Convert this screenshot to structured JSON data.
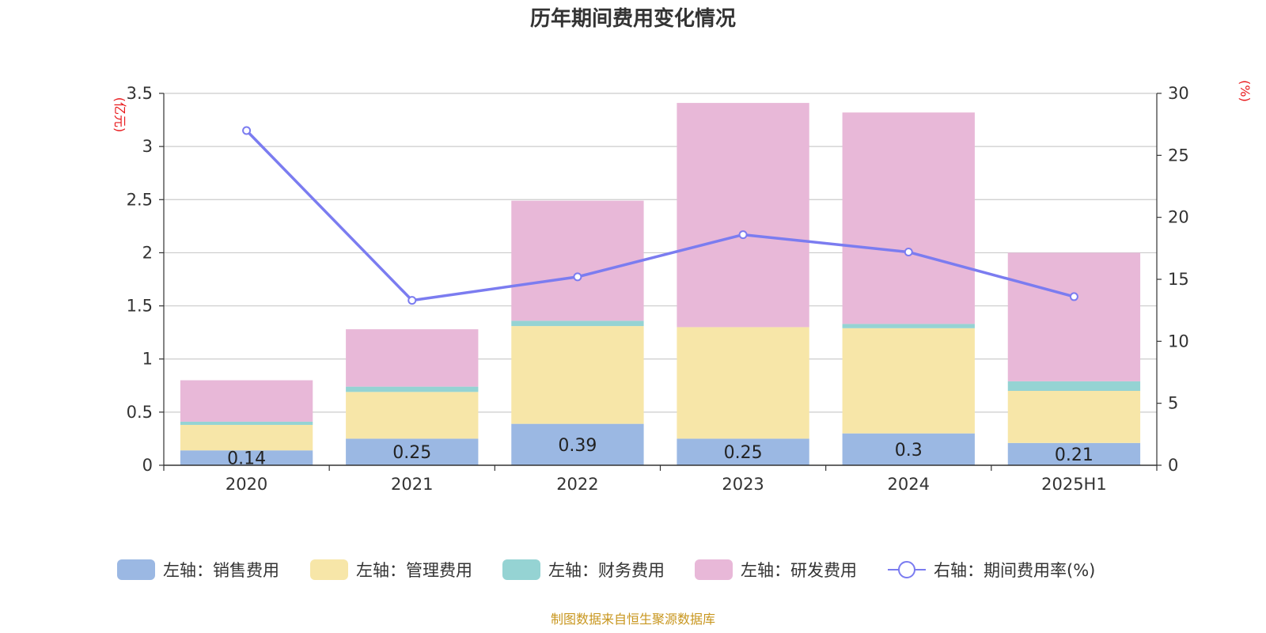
{
  "chart_data": {
    "type": "bar",
    "title": "历年期间费用变化情况",
    "categories": [
      "2020",
      "2021",
      "2022",
      "2023",
      "2024",
      "2025H1"
    ],
    "y_left": {
      "unit": "(亿元)",
      "ylim": [
        0,
        3.5
      ],
      "ticks": [
        "0",
        "0.5",
        "1",
        "1.5",
        "2",
        "2.5",
        "3",
        "3.5"
      ]
    },
    "y_right": {
      "unit": "(%)",
      "ylim": [
        0,
        30
      ],
      "ticks": [
        "0",
        "5",
        "10",
        "15",
        "20",
        "25",
        "30"
      ]
    },
    "stacked": true,
    "series": [
      {
        "name": "左轴：销售费用",
        "type": "bar",
        "axis": "left",
        "color": "#9bb8e3",
        "values": [
          0.14,
          0.25,
          0.39,
          0.25,
          0.3,
          0.21
        ],
        "labels": [
          "0.14",
          "0.25",
          "0.39",
          "0.25",
          "0.3",
          "0.21"
        ]
      },
      {
        "name": "左轴：管理费用",
        "type": "bar",
        "axis": "left",
        "color": "#f7e6a8",
        "values": [
          0.24,
          0.44,
          0.92,
          1.05,
          0.99,
          0.49
        ]
      },
      {
        "name": "左轴：财务费用",
        "type": "bar",
        "axis": "left",
        "color": "#95d3d3",
        "values": [
          0.03,
          0.05,
          0.05,
          0.0,
          0.04,
          0.09
        ]
      },
      {
        "name": "左轴：研发费用",
        "type": "bar",
        "axis": "left",
        "color": "#e8b8d8",
        "values": [
          0.39,
          0.54,
          1.13,
          2.11,
          1.99,
          1.21
        ]
      },
      {
        "name": "右轴：期间费用率(%)",
        "type": "line",
        "axis": "right",
        "color": "#7b7cf0",
        "values": [
          27.0,
          13.3,
          15.2,
          18.6,
          17.2,
          13.6
        ]
      }
    ],
    "grid": true,
    "legend_position": "bottom"
  },
  "source_text": "制图数据来自恒生聚源数据库"
}
